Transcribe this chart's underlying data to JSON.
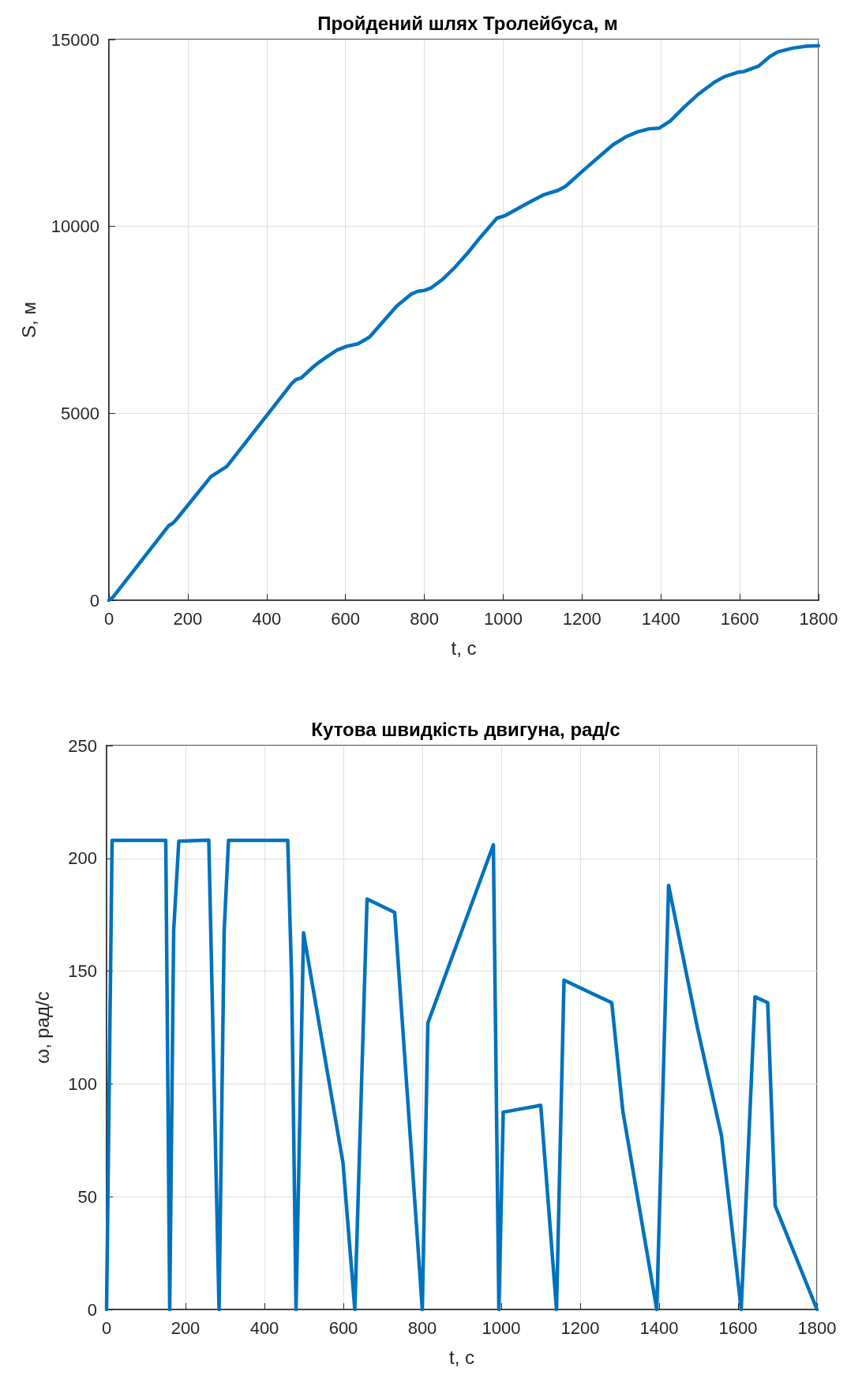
{
  "chart_data": [
    {
      "type": "line",
      "title": "Пройдений шлях Тролейбуса, м",
      "xlabel": "t, c",
      "ylabel": "S, м",
      "xlim": [
        0,
        1800
      ],
      "xticks": [
        0,
        200,
        400,
        600,
        800,
        1000,
        1200,
        1400,
        1600,
        1800
      ],
      "ylim": [
        0,
        15000
      ],
      "yticks": [
        0,
        5000,
        10000,
        15000
      ],
      "grid": true,
      "legend": false,
      "marker": "none",
      "line_style": "solid",
      "series": [
        {
          "color": "#0072bd",
          "x": [
            0,
            11,
            152,
            161,
            171,
            259,
            284,
            299,
            464,
            474,
            488,
            521,
            540,
            578,
            602,
            632,
            661,
            730,
            767,
            782,
            801,
            818,
            848,
            877,
            910,
            943,
            984,
            1003,
            1062,
            1101,
            1138,
            1158,
            1199,
            1278,
            1310,
            1341,
            1370,
            1396,
            1424,
            1458,
            1493,
            1536,
            1562,
            1598,
            1610,
            1648,
            1676,
            1697,
            1735,
            1768,
            1800
          ],
          "values": [
            0,
            90,
            2000,
            2050,
            2160,
            3310,
            3480,
            3580,
            5800,
            5900,
            5950,
            6270,
            6420,
            6690,
            6790,
            6860,
            7040,
            7870,
            8190,
            8260,
            8290,
            8360,
            8600,
            8900,
            9290,
            9720,
            10220,
            10280,
            10620,
            10840,
            10960,
            11070,
            11460,
            12180,
            12390,
            12530,
            12610,
            12630,
            12820,
            13180,
            13520,
            13860,
            14010,
            14130,
            14140,
            14290,
            14540,
            14670,
            14770,
            14820,
            14830
          ]
        }
      ]
    },
    {
      "type": "line",
      "title": "Кутова швидкість двигуна, рад/с",
      "xlabel": "t, c",
      "ylabel": "ω, рад/с",
      "xlim": [
        0,
        1800
      ],
      "xticks": [
        0,
        200,
        400,
        600,
        800,
        1000,
        1200,
        1400,
        1600,
        1800
      ],
      "ylim": [
        0,
        250
      ],
      "yticks": [
        0,
        50,
        100,
        150,
        200,
        250
      ],
      "grid": true,
      "legend": false,
      "marker": "none",
      "line_style": "solid",
      "series": [
        {
          "color": "#0072bd",
          "x": [
            0,
            14,
            150,
            160,
            170,
            183,
            259,
            285,
            298,
            309,
            459,
            469,
            480,
            499,
            599,
            629,
            660,
            730,
            800,
            814,
            980,
            994,
            1005,
            1100,
            1140,
            1159,
            1280,
            1308,
            1394,
            1424,
            1496,
            1558,
            1608,
            1643,
            1675,
            1694,
            1800
          ],
          "values": [
            0,
            208,
            208,
            0,
            168,
            207.6,
            208.1,
            0,
            168,
            208,
            208,
            146,
            0,
            167,
            65,
            0,
            182,
            176,
            0,
            127,
            206,
            0,
            87.5,
            90.5,
            0,
            146,
            136,
            88,
            0,
            188,
            125.7,
            77,
            0,
            138.6,
            136,
            46,
            0
          ]
        }
      ]
    }
  ]
}
